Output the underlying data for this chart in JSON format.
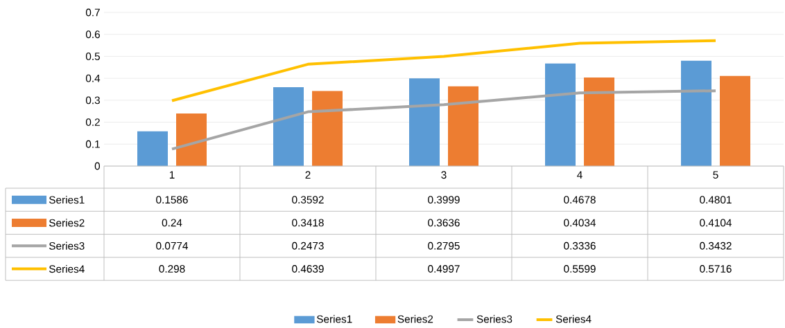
{
  "chart_data": {
    "type": "bar",
    "categories": [
      "1",
      "2",
      "3",
      "4",
      "5"
    ],
    "series": [
      {
        "name": "Series1",
        "color": "#5b9bd5",
        "values": [
          0.1586,
          0.3592,
          0.3999,
          0.4678,
          0.4801
        ]
      },
      {
        "name": "Series2",
        "color": "#ed7d31",
        "values": [
          0.24,
          0.3418,
          0.3636,
          0.4034,
          0.4104
        ]
      },
      {
        "name": "Series3",
        "type": "line",
        "color": "#a5a5a5",
        "values": [
          0.0774,
          0.2473,
          0.2795,
          0.3336,
          0.3432
        ]
      },
      {
        "name": "Series4",
        "type": "line",
        "color": "#ffc000",
        "values": [
          0.298,
          0.4639,
          0.4997,
          0.5599,
          0.5716
        ]
      }
    ],
    "ylim": [
      0,
      0.7
    ],
    "yticks": [
      0,
      0.1,
      0.2,
      0.3,
      0.4,
      0.5,
      0.6,
      0.7
    ],
    "grid": "y",
    "legend": "bottom",
    "data_labels": true,
    "marker": "none",
    "line_style": "solid"
  }
}
